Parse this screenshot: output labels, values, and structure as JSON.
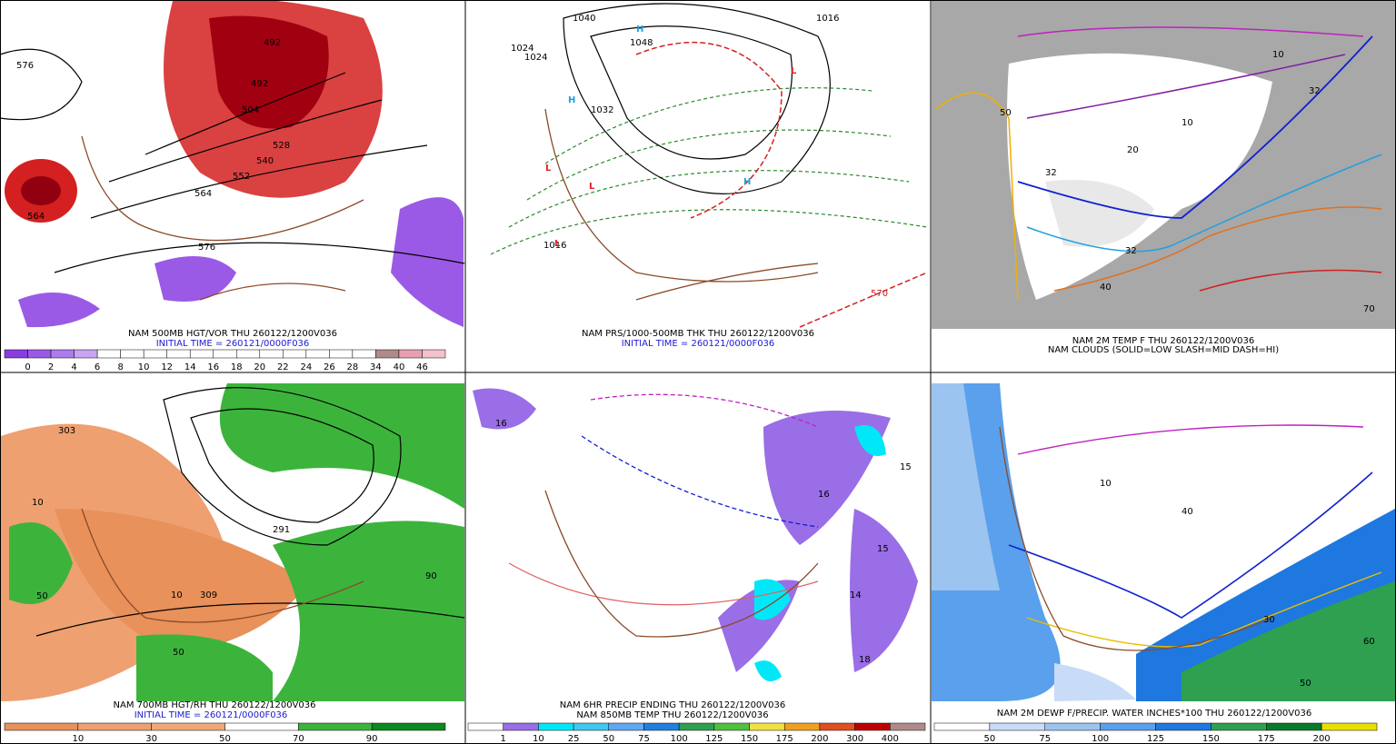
{
  "panels": [
    {
      "caption": [
        "NAM 500MB HGT/VOR THU 260122/1200V036",
        "INITIAL TIME = 260121/0000F036"
      ],
      "colorbar": {
        "labels": [
          "0",
          "2",
          "4",
          "6",
          "8",
          "10",
          "12",
          "14",
          "16",
          "18",
          "20",
          "22",
          "24",
          "26",
          "28",
          "34",
          "40",
          "46"
        ],
        "colors": [
          "#8a3ee0",
          "#9a5ae6",
          "#ad7cec",
          "#c8a4f2",
          "#ffffff",
          "#ffffff",
          "#ffffff",
          "#ffffff",
          "#ffffff",
          "#ffffff",
          "#ffffff",
          "#ffffff",
          "#ffffff",
          "#ffffff",
          "#ffffff",
          "#ffffff",
          "#b08a8a",
          "#e8a0b0",
          "#f4c0cc"
        ]
      },
      "map_labels": [
        "492",
        "492",
        "504",
        "528",
        "540",
        "552",
        "564",
        "564",
        "576",
        "576"
      ]
    },
    {
      "caption": [
        "NAM PRS/1000-500MB THK THU 260122/1200V036",
        "INITIAL TIME = 260121/0000F036"
      ],
      "map_labels": [
        "1024",
        "1024",
        "1040",
        "1048",
        "1032",
        "1016",
        "1016",
        "H",
        "H",
        "H",
        "L",
        "L",
        "L",
        "L",
        "570"
      ]
    },
    {
      "caption": [
        "NAM 2M TEMP F THU 260122/1200V036",
        "NAM CLOUDS (SOLID=LOW SLASH=MID DASH=HI)"
      ],
      "map_labels": [
        "32",
        "32",
        "20",
        "10",
        "10",
        "40",
        "50",
        "70",
        "32"
      ]
    },
    {
      "caption": [
        "NAM 700MB HGT/RH THU 260122/1200V036",
        "INITIAL TIME = 260121/0000F036"
      ],
      "colorbar": {
        "labels": [
          "10",
          "30",
          "50",
          "70",
          "90"
        ],
        "colors": [
          "#e8915a",
          "#eea070",
          "#f0a878",
          "#ffffff",
          "#3cb43c",
          "#0a8a1e"
        ]
      },
      "map_labels": [
        "303",
        "10",
        "50",
        "90",
        "10",
        "50",
        "291",
        "309"
      ]
    },
    {
      "caption": [
        "NAM 6HR PRECIP ENDING THU 260122/1200V036",
        "NAM 850MB TEMP THU 260122/1200V036"
      ],
      "colorbar": {
        "labels": [
          "1",
          "10",
          "25",
          "50",
          "75",
          "100",
          "125",
          "150",
          "175",
          "200",
          "300",
          "400"
        ],
        "colors": [
          "#ffffff",
          "#9a6ee6",
          "#00e8f8",
          "#40c8f0",
          "#60a8f0",
          "#2080e0",
          "#30a050",
          "#50c040",
          "#f0e040",
          "#f0a020",
          "#e05020",
          "#c00000",
          "#b08a8a"
        ]
      },
      "map_labels": [
        "16",
        "15",
        "14",
        "18",
        "16",
        "15"
      ]
    },
    {
      "caption": [
        "NAM 2M DEWP F/PRECIP. WATER INCHES*100 THU 260122/1200V036"
      ],
      "colorbar": {
        "labels": [
          "50",
          "75",
          "100",
          "125",
          "150",
          "175",
          "200"
        ],
        "colors": [
          "#ffffff",
          "#c8dcf8",
          "#9cc4f0",
          "#5aa0ec",
          "#1e78e0",
          "#2ea050",
          "#0a7a2a",
          "#e8e000"
        ]
      },
      "map_labels": [
        "40",
        "50",
        "30",
        "10",
        "60"
      ]
    }
  ]
}
